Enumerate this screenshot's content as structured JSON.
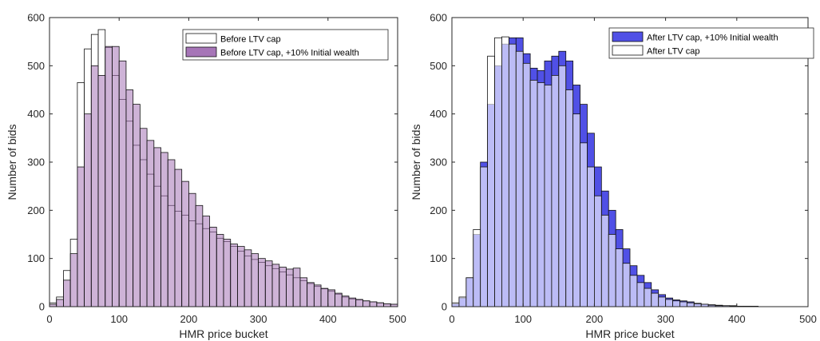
{
  "charts": [
    {
      "id": "left",
      "legend": [
        {
          "label": "Before LTV cap",
          "fill": "#ffffff"
        },
        {
          "label": "Before LTV cap, +10% Initial wealth",
          "fill": "#a675b7"
        }
      ]
    },
    {
      "id": "right",
      "legend": [
        {
          "label": "After LTV cap, +10% Initial wealth",
          "fill": "#5050e6"
        },
        {
          "label": "After LTV cap",
          "fill": "#ffffff"
        }
      ]
    }
  ],
  "chart_data": [
    {
      "type": "bar",
      "title": "",
      "xlabel": "HMR price bucket",
      "ylabel": "Number of bids",
      "xlim": [
        0,
        500
      ],
      "ylim": [
        0,
        600
      ],
      "xticks": [
        0,
        100,
        200,
        300,
        400,
        500
      ],
      "yticks": [
        0,
        100,
        200,
        300,
        400,
        500,
        600
      ],
      "bin_width": 10,
      "bin_starts": [
        0,
        10,
        20,
        30,
        40,
        50,
        60,
        70,
        80,
        90,
        100,
        110,
        120,
        130,
        140,
        150,
        160,
        170,
        180,
        190,
        200,
        210,
        220,
        230,
        240,
        250,
        260,
        270,
        280,
        290,
        300,
        310,
        320,
        330,
        340,
        350,
        360,
        370,
        380,
        390,
        400,
        410,
        420,
        430,
        440,
        450,
        460,
        470,
        480,
        490
      ],
      "legend_position": "top-right",
      "series": [
        {
          "name": "Before LTV cap",
          "color": "#ffffff",
          "values": [
            8,
            20,
            75,
            140,
            465,
            535,
            565,
            575,
            538,
            480,
            430,
            385,
            335,
            305,
            275,
            250,
            230,
            210,
            198,
            190,
            178,
            172,
            162,
            155,
            142,
            135,
            125,
            115,
            105,
            98,
            92,
            85,
            79,
            72,
            66,
            60,
            54,
            48,
            42,
            37,
            32,
            26,
            20,
            16,
            14,
            12,
            10,
            8,
            6,
            5
          ]
        },
        {
          "name": "Before LTV cap, +10% Initial wealth",
          "color": "#a675b7",
          "values": [
            5,
            15,
            55,
            110,
            290,
            400,
            500,
            480,
            540,
            540,
            510,
            450,
            420,
            370,
            345,
            330,
            320,
            305,
            285,
            260,
            235,
            210,
            188,
            165,
            150,
            140,
            130,
            125,
            118,
            110,
            100,
            95,
            88,
            82,
            78,
            80,
            60,
            50,
            45,
            38,
            35,
            28,
            22,
            18,
            15,
            12,
            10,
            8,
            6,
            5
          ]
        }
      ]
    },
    {
      "type": "bar",
      "title": "",
      "xlabel": "HMR price bucket",
      "ylabel": "Number of bids",
      "xlim": [
        0,
        500
      ],
      "ylim": [
        0,
        600
      ],
      "xticks": [
        0,
        100,
        200,
        300,
        400,
        500
      ],
      "yticks": [
        0,
        100,
        200,
        300,
        400,
        500,
        600
      ],
      "bin_width": 10,
      "bin_starts": [
        0,
        10,
        20,
        30,
        40,
        50,
        60,
        70,
        80,
        90,
        100,
        110,
        120,
        130,
        140,
        150,
        160,
        170,
        180,
        190,
        200,
        210,
        220,
        230,
        240,
        250,
        260,
        270,
        280,
        290,
        300,
        310,
        320,
        330,
        340,
        350,
        360,
        370,
        380,
        390,
        400,
        410,
        420,
        430,
        440,
        450,
        460,
        470,
        480,
        490
      ],
      "legend_position": "top-right",
      "series": [
        {
          "name": "After LTV cap, +10% Initial wealth",
          "color": "#5050e6",
          "values": [
            6,
            18,
            60,
            150,
            300,
            420,
            500,
            545,
            558,
            558,
            525,
            495,
            490,
            510,
            520,
            530,
            510,
            460,
            420,
            360,
            290,
            240,
            200,
            160,
            120,
            85,
            65,
            50,
            35,
            25,
            18,
            14,
            12,
            10,
            7,
            5,
            4,
            3,
            2,
            2,
            1,
            1,
            1,
            0,
            0,
            0,
            0,
            0,
            0,
            0
          ]
        },
        {
          "name": "After LTV cap",
          "color": "#ffffff",
          "values": [
            8,
            20,
            60,
            160,
            290,
            520,
            558,
            560,
            545,
            530,
            505,
            470,
            465,
            460,
            480,
            500,
            450,
            400,
            340,
            290,
            230,
            190,
            150,
            120,
            90,
            65,
            50,
            38,
            28,
            20,
            15,
            12,
            10,
            8,
            6,
            5,
            3,
            2,
            2,
            1,
            1,
            1,
            0,
            0,
            0,
            0,
            0,
            0,
            0,
            0
          ]
        }
      ]
    }
  ]
}
